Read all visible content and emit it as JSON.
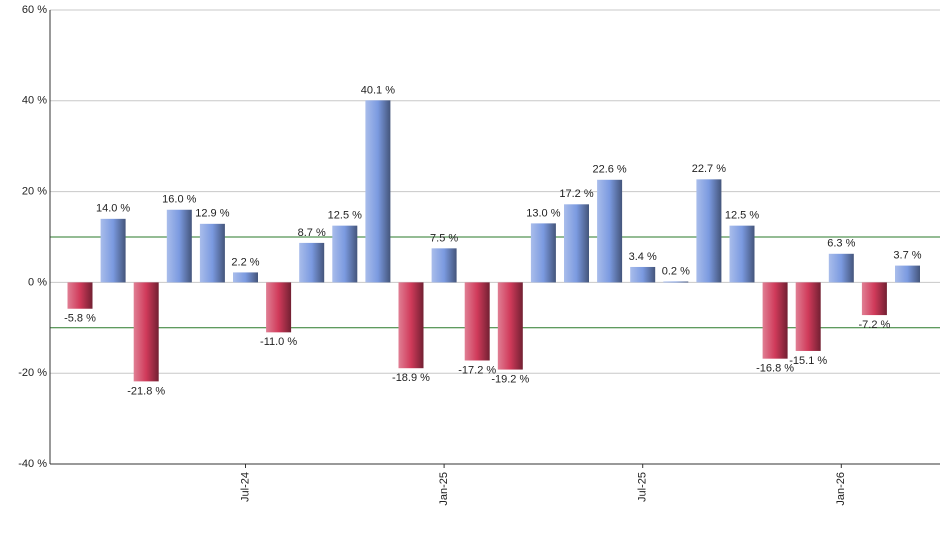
{
  "chart_data": {
    "type": "bar",
    "categories": [
      null,
      null,
      null,
      null,
      null,
      "Jul-24",
      null,
      null,
      null,
      null,
      null,
      "Jan-25",
      null,
      null,
      null,
      null,
      null,
      "Jul-25",
      null,
      null,
      null,
      null,
      null,
      "Jan-26",
      null,
      null
    ],
    "values": [
      -5.8,
      14.0,
      -21.8,
      16.0,
      12.9,
      2.2,
      -11.0,
      8.7,
      12.5,
      40.1,
      -18.9,
      7.5,
      -17.2,
      -19.2,
      13.0,
      17.2,
      22.6,
      3.4,
      0.2,
      22.7,
      12.5,
      -16.8,
      -15.1,
      6.3,
      -7.2,
      3.7
    ],
    "value_labels": [
      "-5.8 %",
      "14.0 %",
      "-21.8 %",
      "16.0 %",
      "12.9 %",
      "2.2 %",
      "-11.0 %",
      "8.7 %",
      "12.5 %",
      "40.1 %",
      "-18.9 %",
      "7.5 %",
      "-17.2 %",
      "-19.2 %",
      "13.0 %",
      "17.2 %",
      "22.6 %",
      "3.4 %",
      "0.2 %",
      "22.7 %",
      "12.5 %",
      "-16.8 %",
      "-15.1 %",
      "6.3 %",
      "-7.2 %",
      "3.7 %"
    ],
    "positive_color": "#7b9ae0",
    "negative_color": "#d03a5a",
    "ylim": [
      -40,
      60
    ],
    "yticks": [
      {
        "value": -40,
        "label": "-40 %"
      },
      {
        "value": -20,
        "label": "-20 %"
      },
      {
        "value": 0,
        "label": "0 %"
      },
      {
        "value": 20,
        "label": "20 %"
      },
      {
        "value": 40,
        "label": "40 %"
      },
      {
        "value": 60,
        "label": "60 %"
      }
    ],
    "grid": true,
    "reference_lines": [
      10,
      -10
    ],
    "reference_color": "#2a7a2a"
  }
}
